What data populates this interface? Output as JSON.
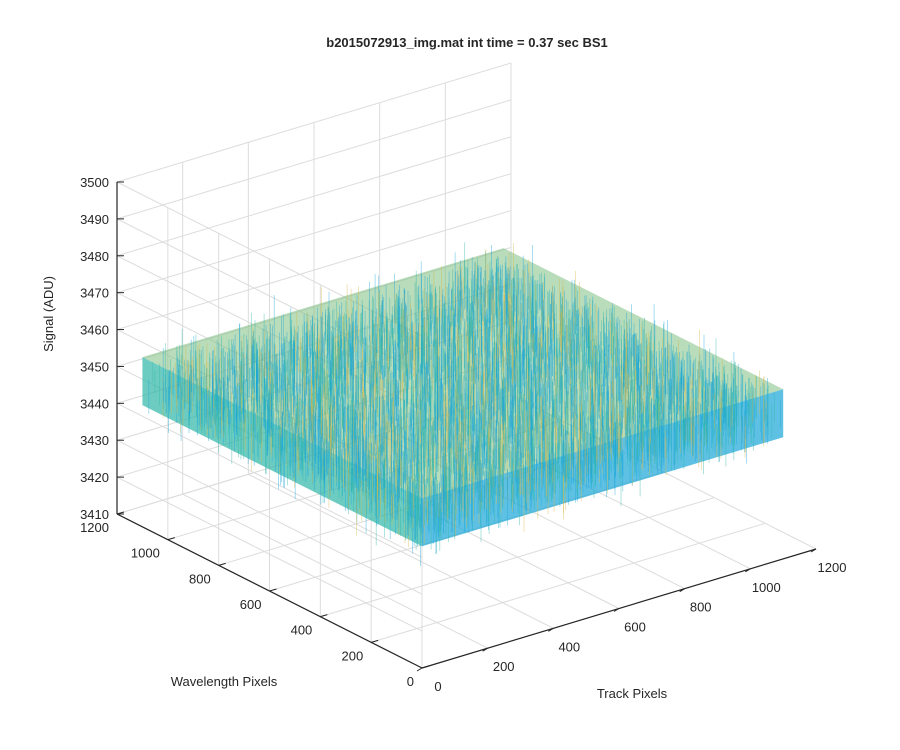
{
  "chart_data": {
    "type": "surface",
    "title": "b2015072913_img.mat int time = 0.37 sec   BS1",
    "xlabel": "Track Pixels",
    "ylabel": "Wavelength Pixels",
    "zlabel": "Signal (ADU)",
    "xlim": [
      0,
      1200
    ],
    "ylim": [
      0,
      1200
    ],
    "zlim": [
      3410,
      3500
    ],
    "xticks": [
      "0",
      "200",
      "400",
      "600",
      "800",
      "1000",
      "1200"
    ],
    "yticks": [
      "0",
      "200",
      "400",
      "600",
      "800",
      "1000",
      "1200"
    ],
    "zticks": [
      "3410",
      "3420",
      "3430",
      "3440",
      "3450",
      "3460",
      "3470",
      "3480",
      "3490",
      "3500"
    ],
    "data_extent": {
      "x": [
        0,
        1100
      ],
      "y": [
        0,
        1100
      ]
    },
    "signal_mean": 3449,
    "signal_range": [
      3420,
      3485
    ],
    "grid": true,
    "colormap": "parula",
    "colors": {
      "low": "#1aa6d9",
      "mid": "#2fb6a7",
      "high": "#d7b84a"
    }
  }
}
